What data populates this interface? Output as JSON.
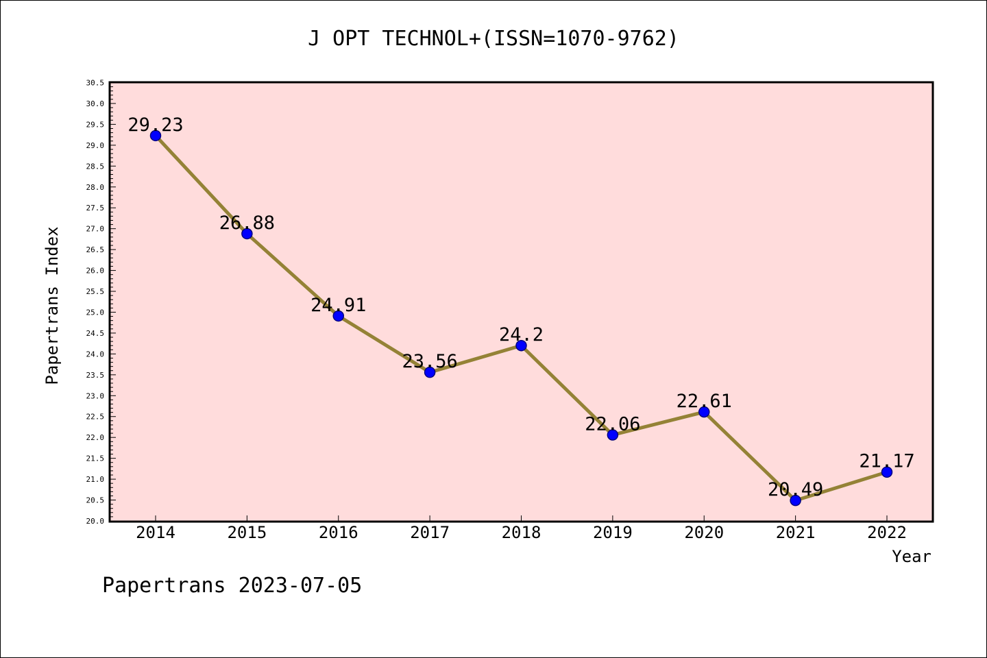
{
  "chart_data": {
    "type": "line",
    "title": "J OPT TECHNOL+(ISSN=1070-9762)",
    "xlabel": "Year",
    "ylabel": "Papertrans Index",
    "categories": [
      "2014",
      "2015",
      "2016",
      "2017",
      "2018",
      "2019",
      "2020",
      "2021",
      "2022"
    ],
    "values": [
      29.23,
      26.88,
      24.91,
      23.56,
      24.2,
      22.06,
      22.61,
      20.49,
      21.17
    ],
    "value_labels": [
      "29.23",
      "26.88",
      "24.91",
      "23.56",
      "24.2",
      "22.06",
      "22.61",
      "20.49",
      "21.17"
    ],
    "ylim": [
      20.0,
      30.5
    ],
    "yticks": [
      "20.0",
      "20.5",
      "21.0",
      "21.5",
      "22.0",
      "22.5",
      "23.0",
      "23.5",
      "24.0",
      "24.5",
      "25.0",
      "25.5",
      "26.0",
      "26.5",
      "27.0",
      "27.5",
      "28.0",
      "28.5",
      "29.0",
      "29.5",
      "30.0",
      "30.5"
    ],
    "grid": false,
    "legend": "none",
    "colors": {
      "plot_background": "#ffdcdc",
      "line": "#948236",
      "marker_fill": "#0000ff",
      "marker_edge": "#000080",
      "axis": "#000000"
    }
  },
  "footer": "Papertrans 2023-07-05"
}
